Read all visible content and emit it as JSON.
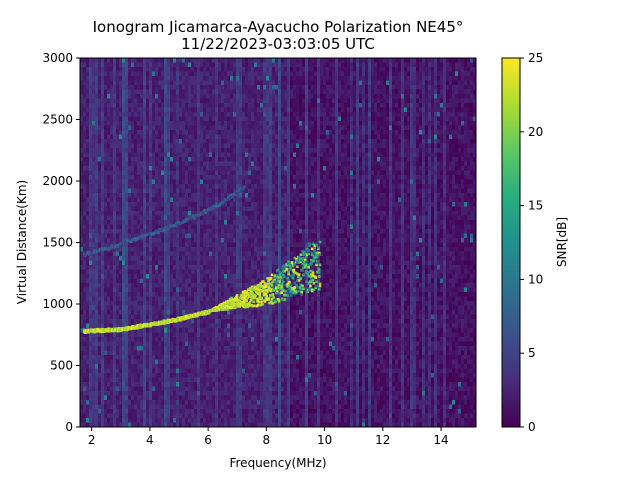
{
  "chart_data": {
    "type": "heatmap",
    "title": "Ionogram Jicamarca-Ayacucho Polarization NE45°",
    "subtitle": "11/22/2023-03:03:05 UTC",
    "xlabel": "Frequency(MHz)",
    "ylabel": "Virtual Distance(Km)",
    "xlim": [
      1.6,
      15.2
    ],
    "ylim": [
      0,
      3000
    ],
    "x_ticks": [
      2,
      4,
      6,
      8,
      10,
      12,
      14
    ],
    "y_ticks": [
      0,
      500,
      1000,
      1500,
      2000,
      2500,
      3000
    ],
    "colorbar": {
      "label": "SNR[dB]",
      "range": [
        0,
        25
      ],
      "ticks": [
        0,
        5,
        10,
        15,
        20,
        25
      ],
      "colormap": "viridis"
    },
    "features": [
      {
        "name": "F-layer first hop trace",
        "x": [
          1.7,
          3,
          4,
          5,
          6,
          7,
          8,
          9,
          9.8
        ],
        "y": [
          780,
          795,
          835,
          880,
          940,
          1020,
          1100,
          1230,
          1320
        ],
        "snr_db": 25
      },
      {
        "name": "F-layer second hop trace",
        "x": [
          1.7,
          2.5,
          3.5,
          4.5,
          5.5,
          6.5,
          7.2
        ],
        "y": [
          1400,
          1450,
          1530,
          1610,
          1710,
          1830,
          1950
        ],
        "snr_db": 12
      }
    ]
  }
}
